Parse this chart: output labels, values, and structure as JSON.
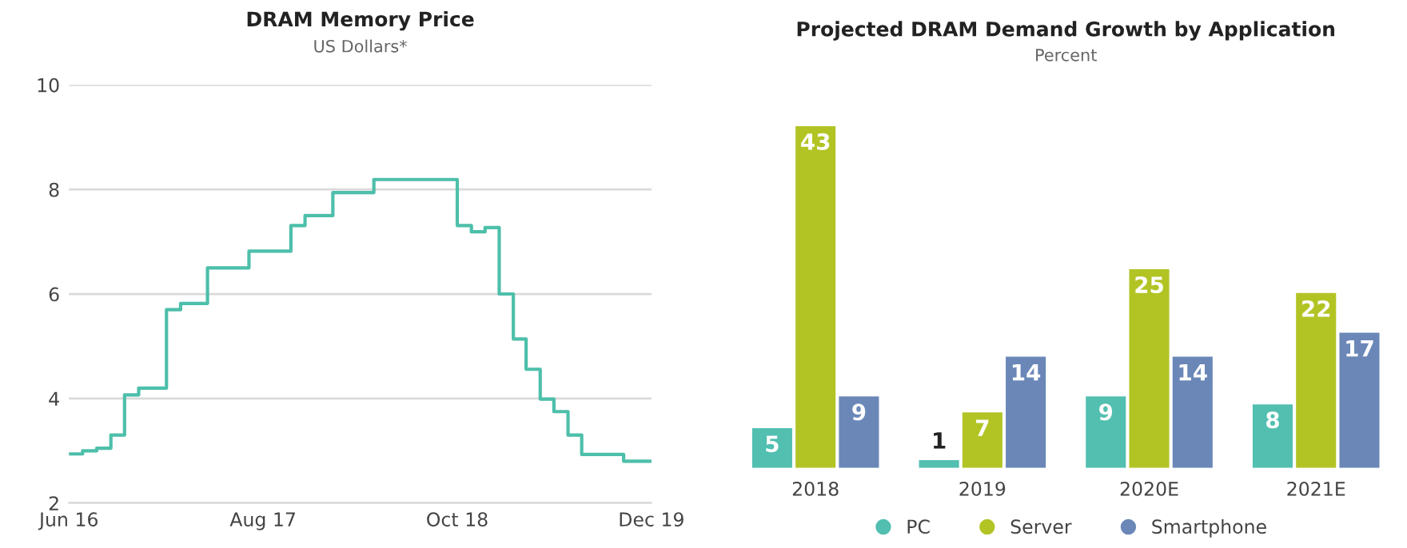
{
  "chart_data": [
    {
      "type": "step",
      "title": "DRAM Memory Price",
      "subtitle": "US Dollars*",
      "x": [
        "2016-06",
        "2016-07",
        "2016-08",
        "2016-09",
        "2016-10",
        "2016-11",
        "2017-01",
        "2017-02",
        "2017-04",
        "2017-07",
        "2017-10",
        "2017-11",
        "2018-01",
        "2018-04",
        "2018-10",
        "2018-11",
        "2018-12",
        "2019-01",
        "2019-02",
        "2019-03",
        "2019-04",
        "2019-05",
        "2019-06",
        "2019-07",
        "2019-10",
        "2019-12"
      ],
      "series": [
        {
          "color": "#4dbfaa",
          "values": [
            2.94,
            3.0,
            3.05,
            3.3,
            4.07,
            4.2,
            5.7,
            5.82,
            6.5,
            6.82,
            7.31,
            7.5,
            7.94,
            8.19,
            7.31,
            7.19,
            7.27,
            6.0,
            5.14,
            4.56,
            3.99,
            3.75,
            3.3,
            2.93,
            2.8,
            2.8
          ]
        }
      ],
      "xlim": [
        "2016-06",
        "2019-12"
      ],
      "xticks": [
        {
          "value": "2016-06",
          "label": "Jun 16"
        },
        {
          "value": "2017-08",
          "label": "Aug 17"
        },
        {
          "value": "2018-10",
          "label": "Oct 18"
        },
        {
          "value": "2019-12",
          "label": "Dec 19"
        }
      ],
      "ylim": [
        2,
        10
      ],
      "yticks": [
        2,
        4,
        6,
        8,
        10
      ],
      "grid": "y",
      "marker": "none",
      "line_style": "solid"
    },
    {
      "type": "bar",
      "title": "Projected DRAM Demand Growth by Application",
      "subtitle": "Percent",
      "categories": [
        "2018",
        "2019",
        "2020E",
        "2021E"
      ],
      "series": [
        {
          "name": "PC",
          "color": "#52bfb0",
          "values": [
            5,
            1,
            9,
            8
          ]
        },
        {
          "name": "Server",
          "color": "#b2c424",
          "values": [
            43,
            7,
            25,
            22
          ]
        },
        {
          "name": "Smartphone",
          "color": "#6a87b8",
          "values": [
            9,
            14,
            14,
            17
          ]
        }
      ],
      "data_labels": true,
      "legend": "bottom",
      "grid": false
    }
  ]
}
